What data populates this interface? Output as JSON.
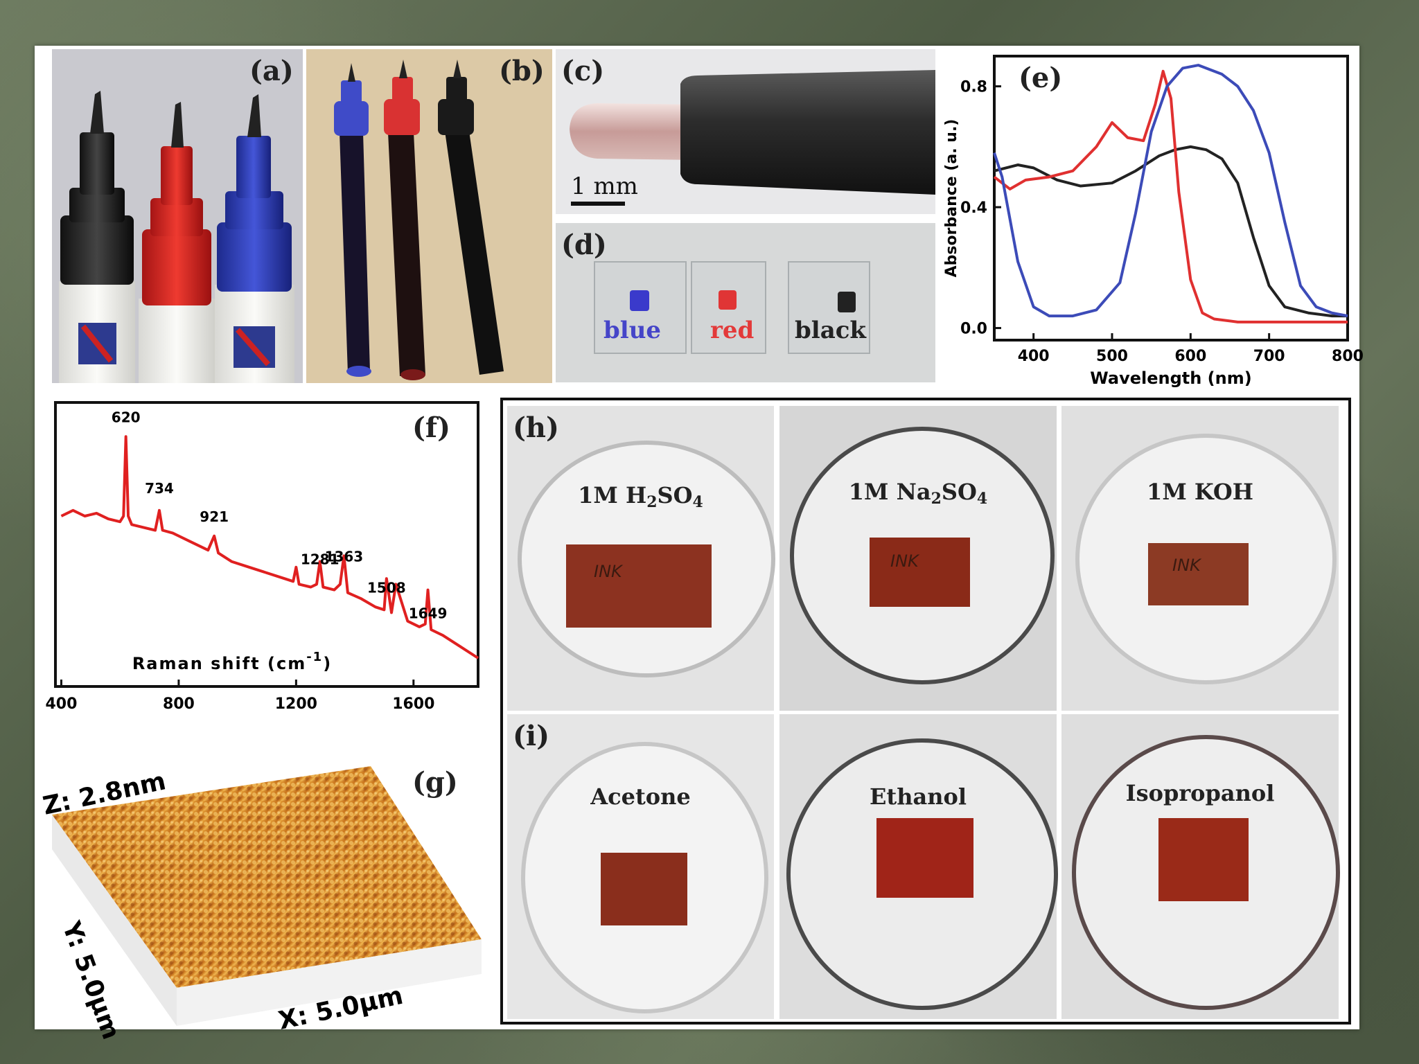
{
  "panels": {
    "a": {
      "label": "(a)"
    },
    "b": {
      "label": "(b)"
    },
    "c": {
      "label": "(c)",
      "scalebar": "1 mm"
    },
    "d": {
      "label": "(d)",
      "samples": [
        "blue",
        "red",
        "black"
      ],
      "sample_colors": [
        "#3a3acb",
        "#e03535",
        "#222222"
      ]
    },
    "e": {
      "label": "(e)"
    },
    "f": {
      "label": "(f)"
    },
    "g": {
      "label": "(g)",
      "z_label": "Z: 2.8nm",
      "y_label": "Y: 5.0μm",
      "x_label": "X: 5.0μm"
    },
    "h": {
      "label": "(h)",
      "dishes": [
        {
          "prefix": "1M H",
          "sub1": "2",
          "mid": "SO",
          "sub2": "4"
        },
        {
          "prefix": "1M Na",
          "sub1": "2",
          "mid": "SO",
          "sub2": "4"
        },
        {
          "prefix": "1M KOH",
          "sub1": "",
          "mid": "",
          "sub2": ""
        }
      ],
      "ink_text": [
        "INK",
        "INK",
        "INK"
      ]
    },
    "i": {
      "label": "(i)",
      "dishes": [
        "Acetone",
        "Ethanol",
        "Isopropanol"
      ]
    }
  },
  "chart_data": [
    {
      "panel": "e",
      "type": "line",
      "xlabel": "Wavelength (nm)",
      "ylabel": "Absorbance (a. u.)",
      "xlim": [
        350,
        800
      ],
      "ylim": [
        -0.04,
        0.9
      ],
      "xticks": [
        400,
        500,
        600,
        700,
        800
      ],
      "yticks": [
        0.0,
        0.4,
        0.8
      ],
      "xtick_labels": [
        "400",
        "500",
        "600",
        "700",
        "800"
      ],
      "ytick_labels": [
        "0.0",
        "0.4",
        "0.8"
      ],
      "series": [
        {
          "color": "#222222",
          "x": [
            350,
            380,
            400,
            430,
            460,
            500,
            530,
            560,
            580,
            600,
            620,
            640,
            660,
            680,
            700,
            720,
            750,
            780,
            800
          ],
          "y": [
            0.52,
            0.54,
            0.53,
            0.49,
            0.47,
            0.48,
            0.52,
            0.57,
            0.59,
            0.6,
            0.59,
            0.56,
            0.48,
            0.3,
            0.14,
            0.07,
            0.05,
            0.04,
            0.04
          ]
        },
        {
          "color": "#e03030",
          "x": [
            350,
            370,
            390,
            420,
            450,
            480,
            500,
            520,
            540,
            555,
            565,
            575,
            585,
            600,
            615,
            630,
            660,
            700,
            750,
            800
          ],
          "y": [
            0.5,
            0.46,
            0.49,
            0.5,
            0.52,
            0.6,
            0.68,
            0.63,
            0.62,
            0.74,
            0.85,
            0.76,
            0.45,
            0.16,
            0.05,
            0.03,
            0.02,
            0.02,
            0.02,
            0.02
          ]
        },
        {
          "color": "#3c4bb8",
          "x": [
            350,
            360,
            380,
            400,
            420,
            450,
            480,
            510,
            530,
            550,
            570,
            590,
            610,
            640,
            660,
            680,
            700,
            720,
            740,
            760,
            780,
            800
          ],
          "y": [
            0.58,
            0.5,
            0.22,
            0.07,
            0.04,
            0.04,
            0.06,
            0.15,
            0.38,
            0.65,
            0.8,
            0.86,
            0.87,
            0.84,
            0.8,
            0.72,
            0.58,
            0.35,
            0.14,
            0.07,
            0.05,
            0.04
          ]
        }
      ]
    },
    {
      "panel": "f",
      "type": "line",
      "xlabel": "Raman shift (cm",
      "xlabel_sup": "-1",
      "xlabel_end": ")",
      "xlim": [
        380,
        1820
      ],
      "ylim": [
        0,
        100
      ],
      "xticks": [
        400,
        800,
        1200,
        1600
      ],
      "xtick_labels": [
        "400",
        "800",
        "1200",
        "1600"
      ],
      "peak_labels": [
        {
          "x": 620,
          "y": 93,
          "text": "620"
        },
        {
          "x": 734,
          "y": 68,
          "text": "734"
        },
        {
          "x": 921,
          "y": 58,
          "text": "921"
        },
        {
          "x": 1281,
          "y": 43,
          "text": "1281"
        },
        {
          "x": 1363,
          "y": 44,
          "text": "1363"
        },
        {
          "x": 1508,
          "y": 33,
          "text": "1508"
        },
        {
          "x": 1649,
          "y": 24,
          "text": "1649"
        }
      ],
      "series": [
        {
          "color": "#e02020",
          "x": [
            400,
            440,
            480,
            520,
            560,
            600,
            612,
            620,
            628,
            640,
            680,
            720,
            734,
            745,
            780,
            840,
            900,
            921,
            935,
            980,
            1040,
            1100,
            1160,
            1190,
            1200,
            1210,
            1250,
            1270,
            1281,
            1292,
            1330,
            1350,
            1363,
            1376,
            1420,
            1470,
            1500,
            1508,
            1525,
            1540,
            1580,
            1620,
            1640,
            1649,
            1660,
            1700,
            1760,
            1820
          ],
          "y": [
            60,
            62,
            60,
            61,
            59,
            58,
            60,
            88,
            60,
            57,
            56,
            55,
            62,
            55,
            54,
            51,
            48,
            53,
            47,
            44,
            42,
            40,
            38,
            37,
            42,
            36,
            35,
            36,
            44,
            35,
            34,
            36,
            46,
            33,
            31,
            28,
            27,
            38,
            26,
            36,
            23,
            21,
            22,
            34,
            20,
            18,
            14,
            10
          ]
        }
      ]
    }
  ]
}
